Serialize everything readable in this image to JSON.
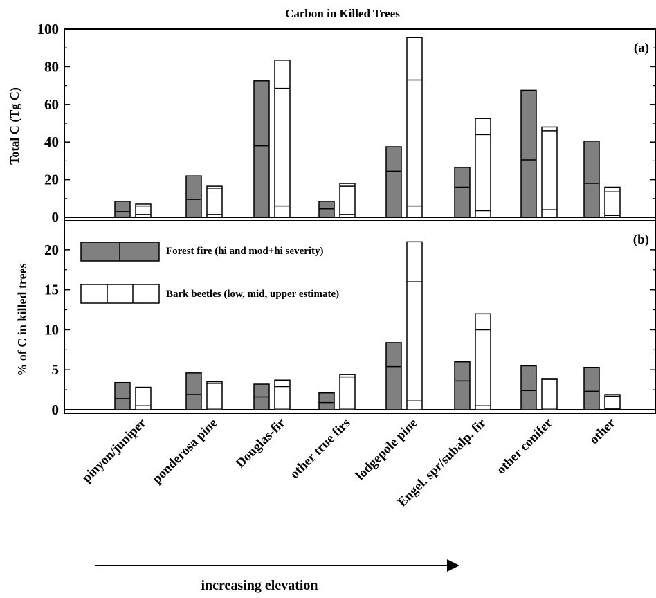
{
  "chart_data": {
    "type": "bar",
    "title": "Carbon in Killed Trees",
    "categories": [
      "pinyon/juniper",
      "ponderosa pine",
      "Douglas-fir",
      "other true firs",
      "lodgepole pine",
      "Engel. spr/subalp. fir",
      "other conifer",
      "other"
    ],
    "footer_label": "increasing elevation",
    "legend": {
      "fire": "Forest fire (hi and mod+hi severity)",
      "beetle": "Bark beetles (low, mid, upper estimate)"
    },
    "colors": {
      "fire": "#808080",
      "beetle": "#ffffff",
      "edge": "#000000"
    },
    "panels": [
      {
        "label": "(a)",
        "ylabel": "Total C (Tg C)",
        "ylim": [
          0,
          100
        ],
        "yticks": [
          0,
          20,
          40,
          60,
          80,
          100
        ],
        "fire_hi": [
          3,
          9.5,
          38,
          4.5,
          24.5,
          16,
          30.5,
          18
        ],
        "fire_modhi": [
          8.5,
          22,
          72.5,
          8.5,
          37.5,
          26.5,
          67.5,
          40.5
        ],
        "beetle_low": [
          1.5,
          1.5,
          6,
          1.5,
          6,
          3.5,
          4,
          1
        ],
        "beetle_mid": [
          6,
          15.5,
          68.5,
          16.5,
          73,
          44,
          46,
          13.5
        ],
        "beetle_upper": [
          7,
          16.5,
          83.5,
          18,
          95.5,
          52.5,
          48,
          16
        ]
      },
      {
        "label": "(b)",
        "ylabel": "% of C in killed trees",
        "ylim": [
          0,
          22.5
        ],
        "yticks": [
          0,
          5,
          10,
          15,
          20
        ],
        "fire_hi": [
          1.4,
          1.9,
          1.6,
          0.9,
          5.4,
          3.6,
          2.4,
          2.3
        ],
        "fire_modhi": [
          3.4,
          4.6,
          3.2,
          2.1,
          8.4,
          6.0,
          5.5,
          5.3
        ],
        "beetle_low": [
          0.5,
          0.2,
          0.2,
          0.2,
          1.1,
          0.5,
          0.2,
          0.1
        ],
        "beetle_mid": [
          2.8,
          3.3,
          2.9,
          4.1,
          16.0,
          10.0,
          3.8,
          1.7
        ],
        "beetle_upper": [
          2.8,
          3.5,
          3.7,
          4.4,
          21.0,
          12.0,
          3.9,
          1.9
        ]
      }
    ]
  }
}
